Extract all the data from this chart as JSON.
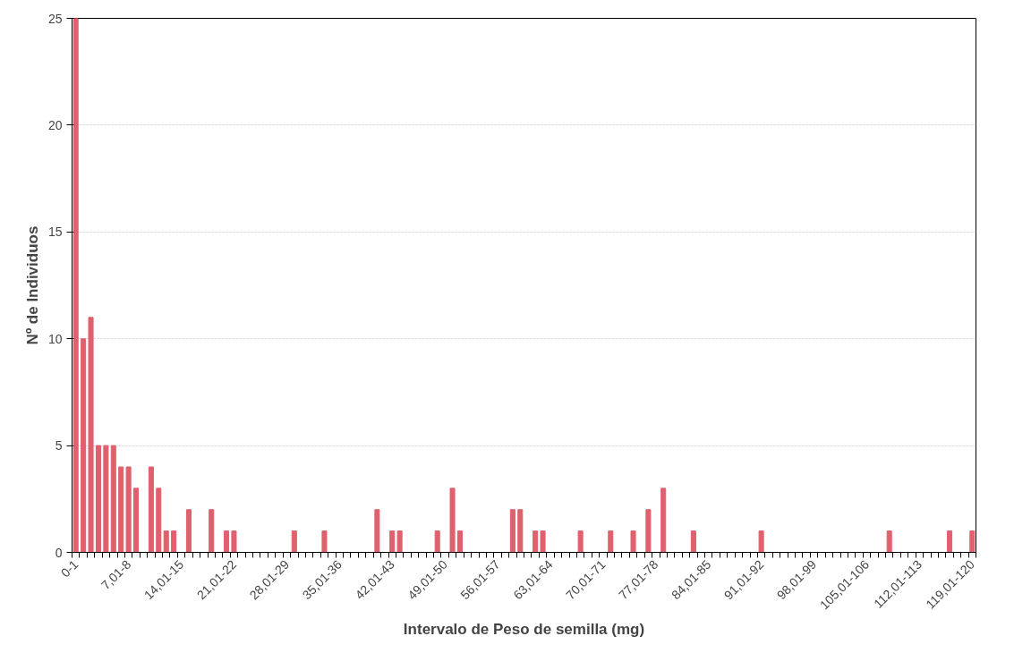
{
  "chart_data": {
    "type": "bar",
    "xlabel": "Intervalo de Peso de semilla (mg)",
    "ylabel": "Nº de Individuos",
    "categories": [
      "0-1",
      null,
      null,
      null,
      null,
      null,
      null,
      "7,01-8",
      null,
      null,
      null,
      null,
      null,
      null,
      "14,01-15",
      null,
      null,
      null,
      null,
      null,
      null,
      "21,01-22",
      null,
      null,
      null,
      null,
      null,
      null,
      "28,01-29",
      null,
      null,
      null,
      null,
      null,
      null,
      "35,01-36",
      null,
      null,
      null,
      null,
      null,
      null,
      "42,01-43",
      null,
      null,
      null,
      null,
      null,
      null,
      "49,01-50",
      null,
      null,
      null,
      null,
      null,
      null,
      "56,01-57",
      null,
      null,
      null,
      null,
      null,
      null,
      "63,01-64",
      null,
      null,
      null,
      null,
      null,
      null,
      "70,01-71",
      null,
      null,
      null,
      null,
      null,
      null,
      "77,01-78",
      null,
      null,
      null,
      null,
      null,
      null,
      "84,01-85",
      null,
      null,
      null,
      null,
      null,
      null,
      "91,01-92",
      null,
      null,
      null,
      null,
      null,
      null,
      "98,01-99",
      null,
      null,
      null,
      null,
      null,
      null,
      "105,01-106",
      null,
      null,
      null,
      null,
      null,
      null,
      "112,01-113",
      null,
      null,
      null,
      null,
      null,
      null,
      "119,01-120"
    ],
    "values": [
      25,
      10,
      11,
      5,
      5,
      5,
      4,
      4,
      3,
      0,
      4,
      3,
      1,
      1,
      0,
      2,
      0,
      0,
      2,
      0,
      1,
      1,
      0,
      0,
      0,
      0,
      0,
      0,
      0,
      1,
      0,
      0,
      0,
      1,
      0,
      0,
      0,
      0,
      0,
      0,
      2,
      0,
      1,
      1,
      0,
      0,
      0,
      0,
      1,
      0,
      3,
      1,
      0,
      0,
      0,
      0,
      0,
      0,
      2,
      2,
      0,
      1,
      1,
      0,
      0,
      0,
      0,
      1,
      0,
      0,
      0,
      1,
      0,
      0,
      1,
      0,
      2,
      0,
      3,
      0,
      0,
      0,
      1,
      0,
      0,
      0,
      0,
      0,
      0,
      0,
      0,
      1,
      0,
      0,
      0,
      0,
      0,
      0,
      0,
      0,
      0,
      0,
      0,
      0,
      0,
      0,
      0,
      0,
      1,
      0,
      0,
      0,
      0,
      0,
      0,
      0,
      1,
      0,
      0,
      1
    ],
    "color": "#e0606e",
    "ylim": [
      0,
      25
    ],
    "yticks": [
      0,
      5,
      10,
      15,
      20,
      25
    ],
    "grid": "y"
  }
}
